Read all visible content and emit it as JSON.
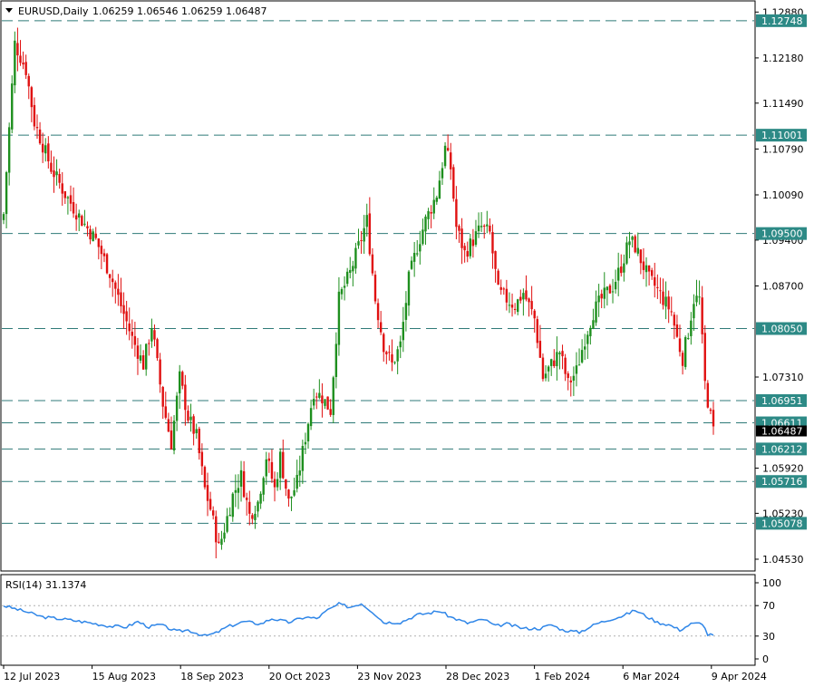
{
  "header": {
    "symbol": "EURUSD,Daily",
    "ohlc": "1.06259 1.06546 1.06259 1.06487"
  },
  "rsi_header": "RSI(14) 31.1374",
  "colors": {
    "bull": "#1e8f1e",
    "bear": "#e01010",
    "hline": "#2f7a78",
    "level_box": "#2d8a86",
    "rsi_line": "#2f86e8",
    "current_box": "#000000"
  },
  "chart_data": [
    {
      "type": "candlestick",
      "symbol": "EURUSD",
      "timeframe": "Daily",
      "price_range": [
        1.0435,
        1.1305
      ],
      "y_ticks": [
        "1.12880",
        "1.12180",
        "1.11490",
        "1.10790",
        "1.10090",
        "1.09400",
        "1.08700",
        "1.07310",
        "1.05920",
        "1.05230",
        "1.04530"
      ],
      "x_labels": [
        "12 Jul 2023",
        "15 Aug 2023",
        "18 Sep 2023",
        "20 Oct 2023",
        "23 Nov 2023",
        "28 Dec 2023",
        "1 Feb 2024",
        "6 Mar 2024",
        "9 Apr 2024"
      ],
      "horizontal_levels": [
        "1.12748",
        "1.11001",
        "1.09500",
        "1.08050",
        "1.06951",
        "1.06611",
        "1.06212",
        "1.05716",
        "1.05078"
      ],
      "current_price": "1.06487",
      "close_anchors": [
        [
          0,
          1.098
        ],
        [
          4,
          1.124
        ],
        [
          8,
          1.12
        ],
        [
          11,
          1.112
        ],
        [
          17,
          1.105
        ],
        [
          22,
          1.101
        ],
        [
          28,
          1.097
        ],
        [
          33,
          1.094
        ],
        [
          38,
          1.089
        ],
        [
          42,
          1.084
        ],
        [
          46,
          1.079
        ],
        [
          50,
          1.075
        ],
        [
          53,
          1.081
        ],
        [
          57,
          1.069
        ],
        [
          60,
          1.063
        ],
        [
          63,
          1.073
        ],
        [
          66,
          1.067
        ],
        [
          69,
          1.064
        ],
        [
          72,
          1.056
        ],
        [
          74,
          1.053
        ],
        [
          77,
          1.047
        ],
        [
          79,
          1.05
        ],
        [
          82,
          1.055
        ],
        [
          85,
          1.058
        ],
        [
          88,
          1.052
        ],
        [
          91,
          1.054
        ],
        [
          94,
          1.061
        ],
        [
          97,
          1.056
        ],
        [
          99,
          1.061
        ],
        [
          102,
          1.054
        ],
        [
          105,
          1.057
        ],
        [
          108,
          1.064
        ],
        [
          111,
          1.071
        ],
        [
          114,
          1.07
        ],
        [
          117,
          1.068
        ],
        [
          120,
          1.085
        ],
        [
          124,
          1.089
        ],
        [
          127,
          1.093
        ],
        [
          130,
          1.097
        ],
        [
          133,
          1.085
        ],
        [
          136,
          1.078
        ],
        [
          139,
          1.075
        ],
        [
          142,
          1.078
        ],
        [
          145,
          1.088
        ],
        [
          148,
          1.093
        ],
        [
          151,
          1.097
        ],
        [
          155,
          1.101
        ],
        [
          158,
          1.108
        ],
        [
          160,
          1.105
        ],
        [
          162,
          1.096
        ],
        [
          165,
          1.092
        ],
        [
          168,
          1.094
        ],
        [
          171,
          1.096
        ],
        [
          174,
          1.095
        ],
        [
          177,
          1.086
        ],
        [
          180,
          1.085
        ],
        [
          183,
          1.084
        ],
        [
          186,
          1.086
        ],
        [
          190,
          1.082
        ],
        [
          193,
          1.073
        ],
        [
          196,
          1.075
        ],
        [
          199,
          1.077
        ],
        [
          202,
          1.072
        ],
        [
          205,
          1.074
        ],
        [
          208,
          1.079
        ],
        [
          211,
          1.083
        ],
        [
          214,
          1.085
        ],
        [
          218,
          1.087
        ],
        [
          221,
          1.09
        ],
        [
          224,
          1.094
        ],
        [
          226,
          1.093
        ],
        [
          229,
          1.09
        ],
        [
          231,
          1.088
        ],
        [
          233,
          1.087
        ],
        [
          236,
          1.085
        ],
        [
          239,
          1.083
        ],
        [
          241,
          1.079
        ],
        [
          243,
          1.076
        ],
        [
          245,
          1.08
        ],
        [
          247,
          1.085
        ],
        [
          249,
          1.085
        ],
        [
          251,
          1.072
        ],
        [
          253,
          1.067
        ],
        [
          254,
          1.0649
        ]
      ],
      "note_series": "RSI(14)",
      "rsi": {
        "name": "RSI(14)",
        "value": "31.1374",
        "y_ticks": [
          "100",
          "70",
          "30",
          "0"
        ],
        "range": [
          0,
          100
        ],
        "levels": [
          30,
          70
        ],
        "anchors": [
          [
            0,
            70
          ],
          [
            8,
            62
          ],
          [
            14,
            55
          ],
          [
            22,
            52
          ],
          [
            30,
            48
          ],
          [
            38,
            43
          ],
          [
            44,
            42
          ],
          [
            48,
            49
          ],
          [
            52,
            42
          ],
          [
            56,
            45
          ],
          [
            62,
            36
          ],
          [
            66,
            38
          ],
          [
            72,
            30
          ],
          [
            76,
            34
          ],
          [
            80,
            42
          ],
          [
            86,
            49
          ],
          [
            92,
            46
          ],
          [
            96,
            53
          ],
          [
            102,
            48
          ],
          [
            108,
            55
          ],
          [
            112,
            53
          ],
          [
            116,
            64
          ],
          [
            120,
            72
          ],
          [
            124,
            68
          ],
          [
            128,
            73
          ],
          [
            132,
            62
          ],
          [
            136,
            48
          ],
          [
            142,
            48
          ],
          [
            148,
            58
          ],
          [
            152,
            60
          ],
          [
            156,
            63
          ],
          [
            160,
            55
          ],
          [
            166,
            47
          ],
          [
            172,
            52
          ],
          [
            176,
            43
          ],
          [
            180,
            46
          ],
          [
            186,
            40
          ],
          [
            192,
            40
          ],
          [
            196,
            45
          ],
          [
            200,
            38
          ],
          [
            206,
            35
          ],
          [
            212,
            46
          ],
          [
            218,
            53
          ],
          [
            222,
            57
          ],
          [
            226,
            64
          ],
          [
            230,
            56
          ],
          [
            234,
            48
          ],
          [
            238,
            45
          ],
          [
            242,
            38
          ],
          [
            246,
            46
          ],
          [
            250,
            47
          ],
          [
            252,
            32
          ],
          [
            254,
            31.14
          ]
        ]
      }
    }
  ]
}
